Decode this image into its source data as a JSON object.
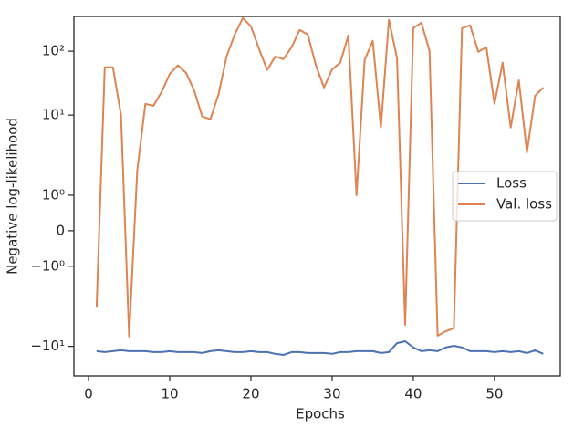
{
  "chart_data": {
    "type": "line",
    "x_label": "Epochs",
    "y_label": "Negative log-likelihood",
    "x": [
      1,
      2,
      3,
      4,
      5,
      6,
      7,
      8,
      9,
      10,
      11,
      12,
      13,
      14,
      15,
      16,
      17,
      18,
      19,
      20,
      21,
      22,
      23,
      24,
      25,
      26,
      27,
      28,
      29,
      30,
      31,
      32,
      33,
      34,
      35,
      36,
      37,
      38,
      39,
      40,
      41,
      42,
      43,
      44,
      45,
      46,
      47,
      48,
      49,
      50,
      51,
      52,
      53,
      54,
      55,
      56
    ],
    "series": [
      {
        "name": "Loss",
        "color": "#4c72b0",
        "values": [
          -11.9,
          -12.3,
          -11.9,
          -11.5,
          -11.9,
          -11.9,
          -11.9,
          -12.3,
          -12.3,
          -11.9,
          -12.3,
          -12.3,
          -12.3,
          -12.7,
          -11.9,
          -11.5,
          -11.9,
          -12.3,
          -12.3,
          -11.9,
          -12.3,
          -12.3,
          -13.1,
          -13.6,
          -12.3,
          -12.3,
          -12.7,
          -12.7,
          -12.7,
          -13.1,
          -12.3,
          -12.3,
          -11.9,
          -11.9,
          -11.9,
          -12.7,
          -12.3,
          -8.9,
          -8.3,
          -10.4,
          -11.9,
          -11.5,
          -11.9,
          -10.4,
          -9.8,
          -10.4,
          -11.9,
          -11.9,
          -11.9,
          -12.3,
          -11.9,
          -12.3,
          -11.9,
          -12.7,
          -11.5,
          -13.1
        ]
      },
      {
        "name": "Val. loss",
        "color": "#dd8452",
        "values": [
          -2.4,
          56,
          56,
          10.1,
          -7,
          1.7,
          15,
          14,
          23,
          44,
          60,
          46,
          24.5,
          9.5,
          8.6,
          20.8,
          83,
          182,
          330,
          245,
          108,
          51,
          83,
          75,
          115,
          215,
          182,
          60,
          27,
          52,
          66,
          177,
          1,
          73,
          145,
          6.4,
          309,
          78,
          -4.6,
          230,
          280,
          101,
          -6.8,
          -5.8,
          -5.2,
          230,
          254,
          98,
          115,
          15,
          66,
          6.4,
          35,
          2.6,
          20,
          27
        ]
      }
    ],
    "xlim": [
      -1.8,
      58.1
    ],
    "xticks": [
      0,
      10,
      20,
      30,
      40,
      50
    ],
    "ylim": [
      -29,
      350
    ],
    "yscale": "symlog",
    "linthresh": 2,
    "yticks": [
      {
        "value": -10,
        "label": "−10¹"
      },
      {
        "value": -1,
        "label": "−10⁰"
      },
      0,
      {
        "value": 1,
        "label": "10⁰"
      },
      {
        "value": 10,
        "label": "10¹"
      },
      {
        "value": 100,
        "label": "10²"
      }
    ],
    "legend": "center right"
  }
}
